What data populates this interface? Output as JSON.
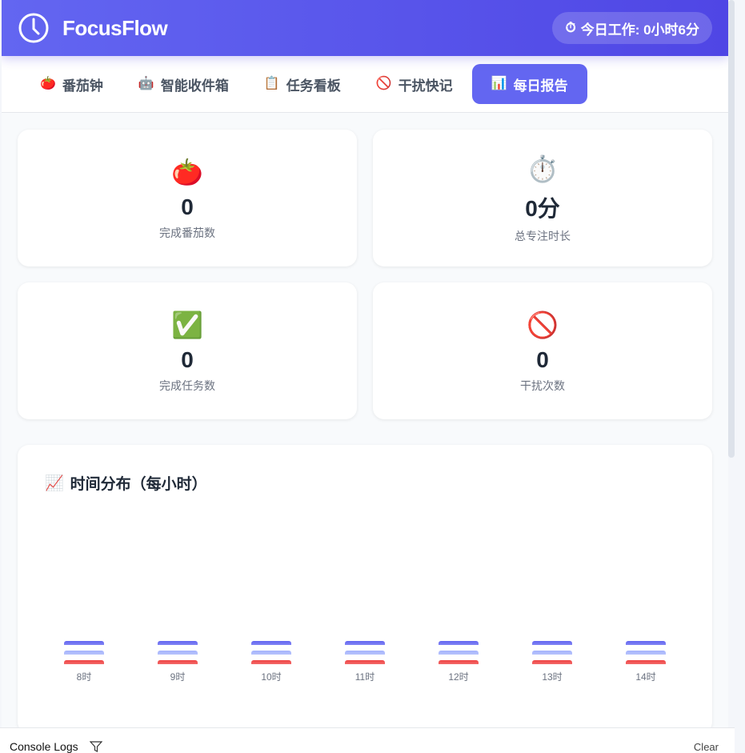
{
  "header": {
    "title": "FocusFlow",
    "logo_icon": "clock-icon",
    "work_badge": "今日工作: 0小时6分",
    "badge_icon": "⏱"
  },
  "tabs": [
    {
      "label": "番茄钟",
      "icon": "🍅",
      "active": false
    },
    {
      "label": "智能收件箱",
      "icon": "🤖",
      "active": false
    },
    {
      "label": "任务看板",
      "icon": "📋",
      "active": false
    },
    {
      "label": "干扰快记",
      "icon": "🚫",
      "active": false
    },
    {
      "label": "每日报告",
      "icon": "📊",
      "active": true
    }
  ],
  "stats": [
    {
      "icon": "🍅",
      "value": "0",
      "label": "完成番茄数"
    },
    {
      "icon": "⏱️",
      "value": "0分",
      "label": "总专注时长"
    },
    {
      "icon": "✅",
      "value": "0",
      "label": "完成任务数"
    },
    {
      "icon": "🚫",
      "value": "0",
      "label": "干扰次数"
    }
  ],
  "chart_data": {
    "type": "bar",
    "title": "时间分布（每小时）",
    "title_icon": "📈",
    "categories": [
      "8时",
      "9时",
      "10时",
      "11时",
      "12时",
      "13时",
      "14时"
    ],
    "series": [
      {
        "values": [
          0,
          0,
          0,
          0,
          0,
          0,
          0
        ],
        "color": "#6366f1"
      },
      {
        "values": [
          0,
          0,
          0,
          0,
          0,
          0,
          0
        ],
        "color": "#a5b4fc"
      },
      {
        "values": [
          0,
          0,
          0,
          0,
          0,
          0,
          0
        ],
        "color": "#ef4444"
      }
    ]
  },
  "console": {
    "title": "Console Logs",
    "clear": "Clear"
  }
}
